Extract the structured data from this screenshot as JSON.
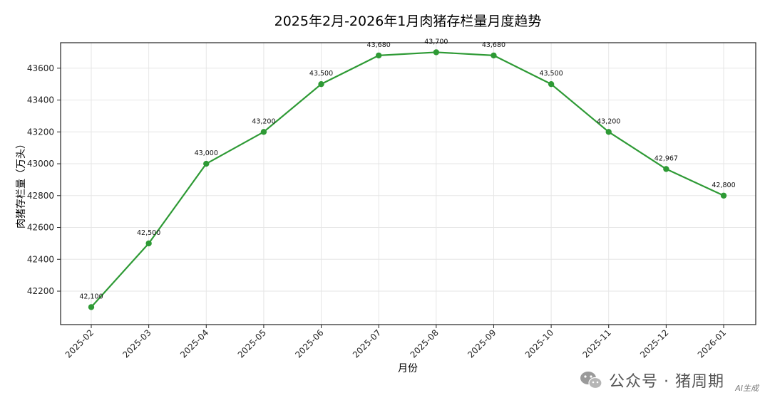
{
  "chart_data": {
    "type": "line",
    "title": "2025年2月-2026年1月肉猪存栏量月度趋势",
    "xlabel": "月份",
    "ylabel": "肉猪存栏量（万头）",
    "categories": [
      "2025-02",
      "2025-03",
      "2025-04",
      "2025-05",
      "2025-06",
      "2025-07",
      "2025-08",
      "2025-09",
      "2025-10",
      "2025-11",
      "2025-12",
      "2026-01"
    ],
    "series": [
      {
        "values": [
          42100,
          42500,
          43000,
          43200,
          43500,
          43680,
          43700,
          43680,
          43500,
          43200,
          42967,
          42800
        ],
        "color": "#2e9a35"
      }
    ],
    "data_labels": [
      "42,100",
      "42,500",
      "43,000",
      "43,200",
      "43,500",
      "43,680",
      "43,700",
      "43,680",
      "43,500",
      "43,200",
      "42,967",
      "42,800"
    ],
    "yticks": [
      42200,
      42400,
      42600,
      42800,
      43000,
      43200,
      43400,
      43600
    ],
    "ylim": [
      41990,
      43760
    ],
    "grid": true,
    "legend": "none"
  },
  "watermark": {
    "text": "公众号 · 猪周期",
    "icon": "wechat-icon",
    "badge": "AI生成"
  }
}
